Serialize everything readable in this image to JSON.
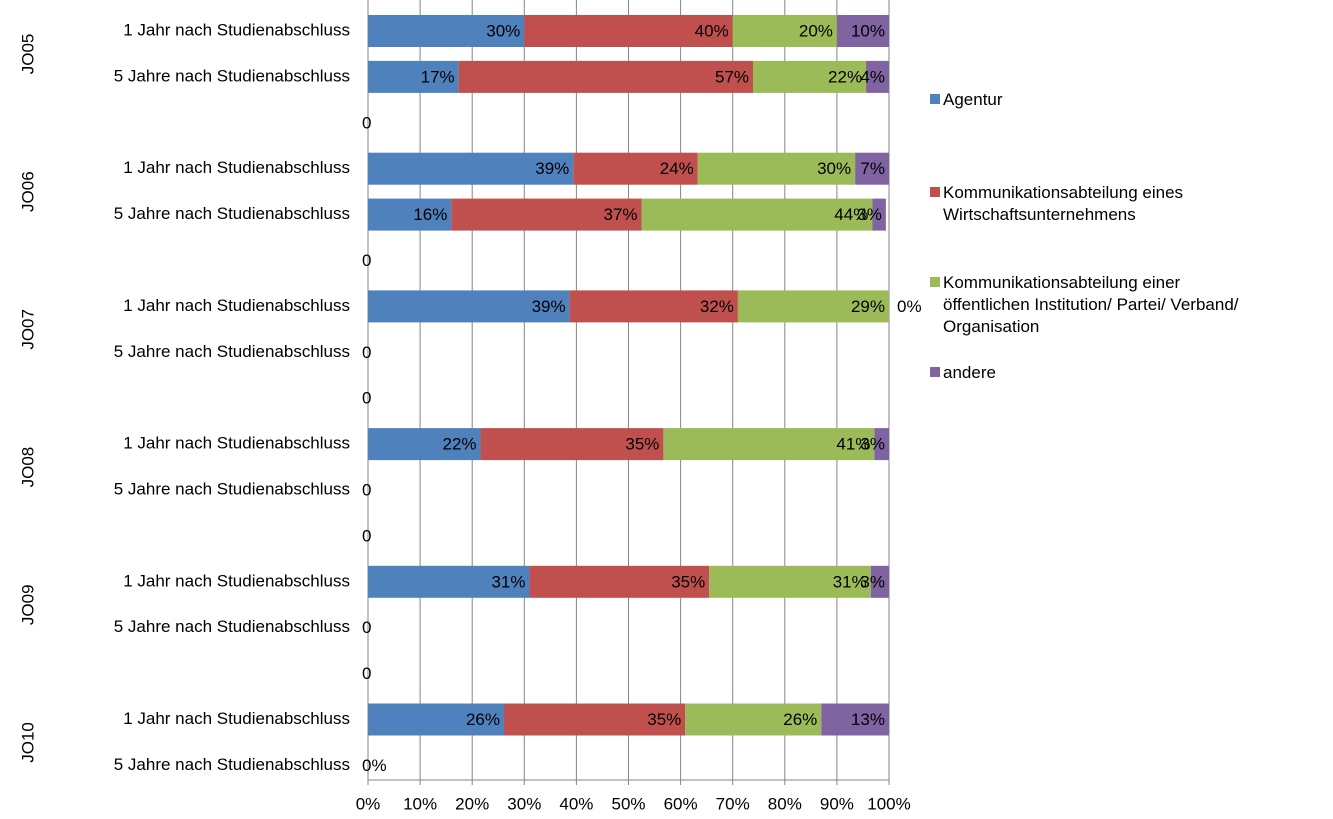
{
  "chart_data": {
    "type": "bar",
    "orientation": "horizontal",
    "stacked": "percent",
    "legend_position": "right",
    "grid": "vertical",
    "xlim": [
      0,
      100
    ],
    "x_ticks": [
      "0%",
      "10%",
      "20%",
      "30%",
      "40%",
      "50%",
      "60%",
      "70%",
      "80%",
      "90%",
      "100%"
    ],
    "groups": [
      "JO05",
      "JO06",
      "JO07",
      "JO08",
      "JO09",
      "JO10"
    ],
    "subcategories": [
      "1 Jahr nach Studienabschluss",
      "5 Jahre nach Studienabschluss"
    ],
    "spacer_label": "0",
    "colors": [
      "#4F81BD",
      "#C0504D",
      "#9BBB59",
      "#8064A2"
    ],
    "series": [
      {
        "name": "Agentur",
        "color": "#4F81BD"
      },
      {
        "name": "Kommunikationsabteilung eines\nWirtschaftsunternehmens",
        "color": "#C0504D"
      },
      {
        "name": "Kommunikationsabteilung einer\nöffentlichen Institution/ Partei/ Verband/\nOrganisation",
        "color": "#9BBB59"
      },
      {
        "name": "andere",
        "color": "#8064A2"
      }
    ],
    "rows": [
      {
        "group": "JO05",
        "label": "1 Jahr nach Studienabschluss",
        "values": [
          30,
          40,
          20,
          10
        ],
        "labels": [
          "30%",
          "40%",
          "20%",
          "10%"
        ]
      },
      {
        "group": "JO05",
        "label": "5 Jahre nach Studienabschluss",
        "values": [
          17.4,
          56.5,
          21.7,
          4.4
        ],
        "labels": [
          "17%",
          "57%",
          "22%",
          "4%"
        ]
      },
      {
        "group": "JO06",
        "label": "1 Jahr nach Studienabschluss",
        "values": [
          39.4,
          23.9,
          30.2,
          6.5
        ],
        "labels": [
          "39%",
          "24%",
          "30%",
          "7%"
        ]
      },
      {
        "group": "JO06",
        "label": "5 Jahre nach Studienabschluss",
        "values": [
          16,
          36.5,
          44.3,
          2.6
        ],
        "labels": [
          "16%",
          "37%",
          "44%",
          "3%"
        ]
      },
      {
        "group": "JO07",
        "label": "1 Jahr nach Studienabschluss",
        "values": [
          38.7,
          32.3,
          29,
          0
        ],
        "labels": [
          "39%",
          "32%",
          "29%",
          "0%"
        ]
      },
      {
        "group": "JO07",
        "label": "5 Jahre nach Studienabschluss",
        "values": [],
        "labels": [],
        "empty_label": "0"
      },
      {
        "group": "JO08",
        "label": "1 Jahr nach Studienabschluss",
        "values": [
          21.6,
          35.1,
          40.5,
          2.8
        ],
        "labels": [
          "22%",
          "35%",
          "41%",
          "3%"
        ]
      },
      {
        "group": "JO08",
        "label": "5 Jahre nach Studienabschluss",
        "values": [],
        "labels": [],
        "empty_label": "0"
      },
      {
        "group": "JO09",
        "label": "1 Jahr nach Studienabschluss",
        "values": [
          31,
          34.5,
          31,
          3.5
        ],
        "labels": [
          "31%",
          "35%",
          "31%",
          "3%"
        ]
      },
      {
        "group": "JO09",
        "label": "5 Jahre nach Studienabschluss",
        "values": [],
        "labels": [],
        "empty_label": "0"
      },
      {
        "group": "JO10",
        "label": "1 Jahr nach Studienabschluss",
        "values": [
          26.1,
          34.8,
          26.1,
          13
        ],
        "labels": [
          "26%",
          "35%",
          "26%",
          "13%"
        ]
      },
      {
        "group": "JO10",
        "label": "5 Jahre nach Studienabschluss",
        "values": [],
        "labels": [],
        "empty_label": "0%"
      }
    ]
  }
}
